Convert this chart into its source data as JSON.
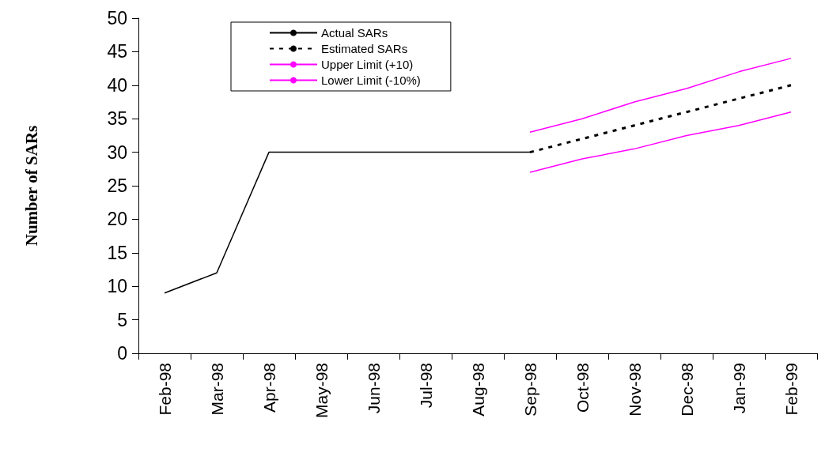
{
  "chart_data": {
    "type": "line",
    "ylabel": "Number of SARs",
    "categories": [
      "Feb-98",
      "Mar-98",
      "Apr-98",
      "May-98",
      "Jun-98",
      "Jul-98",
      "Aug-98",
      "Sep-98",
      "Oct-98",
      "Nov-98",
      "Dec-98",
      "Jan-99",
      "Feb-99"
    ],
    "series": [
      {
        "name": "Actual SARs",
        "color": "#000000",
        "line_style": "solid",
        "values": [
          9,
          12,
          30,
          30,
          30,
          30,
          30,
          30,
          null,
          null,
          null,
          null,
          null
        ]
      },
      {
        "name": "Estimated SARs",
        "color": "#000000",
        "line_style": "dotted",
        "values": [
          null,
          null,
          null,
          null,
          null,
          null,
          null,
          30,
          32,
          34,
          36,
          38,
          40
        ]
      },
      {
        "name": "Upper Limit (+10)",
        "color": "#ff00ff",
        "line_style": "solid",
        "values": [
          null,
          null,
          null,
          null,
          null,
          null,
          null,
          33,
          35,
          37.5,
          39.5,
          42,
          44
        ]
      },
      {
        "name": "Lower Limit (-10%)",
        "color": "#ff00ff",
        "line_style": "solid",
        "values": [
          null,
          null,
          null,
          null,
          null,
          null,
          null,
          27,
          29,
          30.5,
          32.5,
          34,
          36
        ]
      }
    ],
    "ylim": [
      0,
      50
    ],
    "yticks": [
      0,
      5,
      10,
      15,
      20,
      25,
      30,
      35,
      40,
      45,
      50
    ],
    "grid": false,
    "legend": "top left",
    "marker": "none"
  }
}
